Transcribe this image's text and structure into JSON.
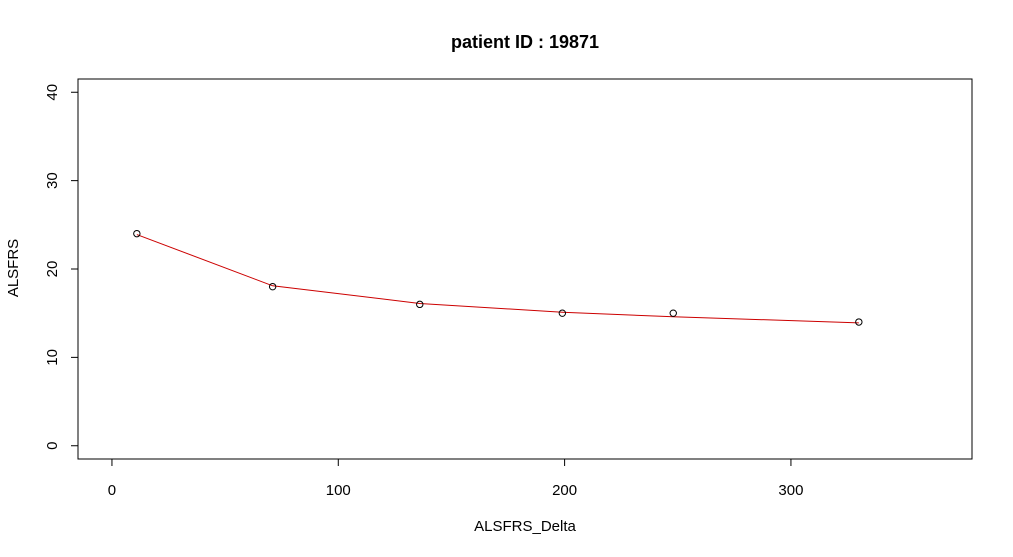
{
  "chart_data": {
    "type": "line",
    "title": "patient ID : 19871",
    "xlabel": "ALSFRS_Delta",
    "ylabel": "ALSFRS",
    "xlim": [
      -15,
      380
    ],
    "ylim": [
      -1.5,
      41.5
    ],
    "xticks": [
      0,
      100,
      200,
      300
    ],
    "yticks": [
      0,
      10,
      20,
      30,
      40
    ],
    "points": [
      {
        "x": 11,
        "y": 24
      },
      {
        "x": 71,
        "y": 18
      },
      {
        "x": 136,
        "y": 16
      },
      {
        "x": 199,
        "y": 15
      },
      {
        "x": 248,
        "y": 15
      },
      {
        "x": 330,
        "y": 14
      }
    ],
    "fit_line": [
      {
        "x": 11,
        "y": 23.9
      },
      {
        "x": 71,
        "y": 18.1
      },
      {
        "x": 136,
        "y": 16.1
      },
      {
        "x": 199,
        "y": 15.1
      },
      {
        "x": 248,
        "y": 14.6
      },
      {
        "x": 330,
        "y": 13.9
      }
    ],
    "grid": false,
    "colors": {
      "line": "#cc0000",
      "points": "#000000"
    }
  }
}
